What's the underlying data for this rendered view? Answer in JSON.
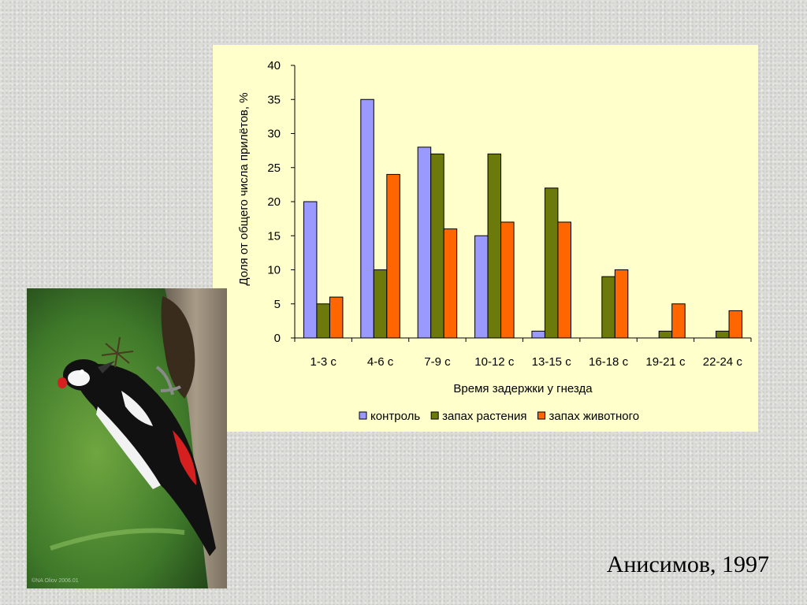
{
  "chart_data": {
    "type": "bar",
    "ylabel": "Доля от общего числа прилётов, %",
    "xlabel": "Время задержки у гнезда",
    "categories": [
      "1-3 с",
      "4-6 с",
      "7-9 с",
      "10-12 с",
      "13-15 с",
      "16-18 с",
      "19-21 с",
      "22-24 с"
    ],
    "series": [
      {
        "name": "контроль",
        "color": "#9999ff",
        "values": [
          20,
          35,
          28,
          15,
          1,
          0,
          0,
          0
        ]
      },
      {
        "name": "запах растения",
        "color": "#6b7a0a",
        "values": [
          5,
          10,
          27,
          27,
          22,
          9,
          1,
          1
        ]
      },
      {
        "name": "запах животного",
        "color": "#ff6600",
        "values": [
          6,
          24,
          16,
          17,
          17,
          10,
          5,
          4
        ]
      }
    ],
    "ylim": [
      0,
      40
    ],
    "yticks": [
      0,
      5,
      10,
      15,
      20,
      25,
      30,
      35,
      40
    ],
    "legend_position": "bottom",
    "background": "#ffffcc"
  },
  "citation": "Анисимов, 1997",
  "photo": {
    "subject": "woodpecker-photo",
    "credit": "©NA Oliov 2006.01"
  }
}
